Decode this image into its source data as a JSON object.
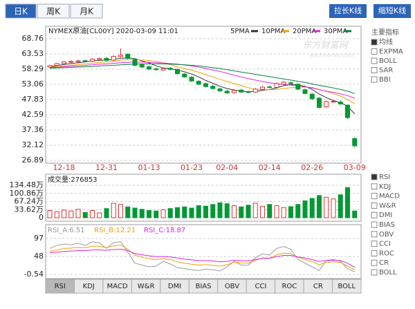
{
  "tabs": [
    "日K",
    "周K",
    "月K"
  ],
  "active_tab": 0,
  "buttons": [
    "拉长K线",
    "缩短K线"
  ],
  "watermark": [
    "东方财富网",
    "eastmoney.com"
  ],
  "side_menu": {
    "title": "主要指标",
    "items": [
      "均线",
      "EXPMA",
      "BOLL",
      "SAR",
      "BBI"
    ],
    "selected_index": 0
  },
  "indicator_menu": {
    "items": [
      "RSI",
      "KDJ",
      "MACD",
      "W&R",
      "DMI",
      "BIAS",
      "OBV",
      "CCI",
      "ROC",
      "CR",
      "BOLL"
    ],
    "selected_index": 0
  },
  "bottom_tabs": {
    "items": [
      "RSI",
      "KDJ",
      "MACD",
      "W&R",
      "DMI",
      "BIAS",
      "OBV",
      "CCI",
      "ROC",
      "CR",
      "BOLL"
    ],
    "active_index": 0
  },
  "chart_data": [
    {
      "type": "candlestick",
      "title": "NYMEX原油[CL00Y] 2020-03-09 11:01",
      "categories": [
        null,
        null,
        "12-18",
        null,
        null,
        null,
        null,
        null,
        "12-31",
        null,
        null,
        null,
        null,
        null,
        "01-13",
        null,
        null,
        null,
        null,
        null,
        "01-23",
        null,
        null,
        null,
        null,
        "02-04",
        null,
        null,
        null,
        null,
        null,
        "02-14",
        null,
        null,
        null,
        null,
        null,
        "02-26",
        null,
        null,
        null,
        null,
        null,
        "03-09"
      ],
      "open": [
        59.0,
        59.6,
        60.2,
        60.7,
        60.9,
        61.2,
        61.0,
        61.6,
        62.0,
        61.4,
        62.6,
        63.4,
        61.6,
        59.8,
        59.1,
        58.4,
        58.0,
        58.6,
        58.2,
        56.6,
        55.5,
        54.1,
        53.3,
        52.4,
        51.5,
        50.7,
        50.2,
        51.1,
        50.5,
        50.4,
        51.3,
        52.2,
        52.0,
        53.1,
        53.6,
        53.1,
        51.2,
        49.7,
        48.3,
        45.3,
        47.0,
        47.0,
        45.9,
        34.4
      ],
      "high": [
        59.8,
        60.5,
        61.1,
        61.3,
        61.5,
        61.6,
        62.1,
        62.3,
        62.4,
        63.0,
        65.4,
        63.8,
        62.0,
        60.2,
        59.5,
        58.8,
        58.9,
        59.0,
        58.5,
        57.0,
        55.9,
        54.5,
        53.7,
        52.8,
        51.9,
        51.2,
        51.4,
        51.5,
        50.9,
        51.8,
        52.5,
        52.6,
        53.7,
        54.2,
        54.0,
        53.4,
        51.6,
        50.1,
        48.7,
        47.5,
        47.6,
        47.5,
        46.1,
        34.9
      ],
      "low": [
        58.7,
        59.3,
        59.9,
        60.4,
        60.6,
        60.7,
        60.7,
        61.3,
        61.0,
        61.1,
        62.3,
        61.6,
        59.2,
        58.7,
        58.0,
        57.8,
        57.7,
        57.9,
        56.4,
        55.3,
        53.9,
        52.8,
        52.0,
        51.3,
        50.5,
        49.8,
        49.9,
        50.1,
        50.0,
        50.1,
        51.0,
        51.8,
        51.7,
        52.8,
        53.0,
        51.1,
        49.6,
        47.8,
        44.8,
        44.9,
        46.7,
        46.0,
        41.2,
        31.5
      ],
      "close": [
        59.5,
        60.2,
        60.8,
        60.9,
        61.1,
        61.0,
        61.7,
        61.9,
        61.3,
        62.7,
        63.1,
        62.0,
        59.6,
        59.0,
        58.3,
        58.1,
        58.5,
        58.2,
        56.7,
        55.6,
        54.2,
        53.1,
        52.3,
        51.6,
        50.8,
        50.1,
        51.0,
        50.4,
        50.3,
        51.4,
        52.1,
        52.1,
        53.3,
        53.8,
        53.3,
        51.4,
        49.9,
        48.1,
        45.1,
        47.1,
        47.2,
        46.3,
        41.6,
        31.9
      ],
      "up_color": "#e03030",
      "down_color": "#009933",
      "ylim": [
        26.89,
        68.76
      ],
      "yticks": [
        68.76,
        63.53,
        58.29,
        53.06,
        47.83,
        42.59,
        37.36,
        32.12,
        26.89
      ],
      "grid": true,
      "series": [
        {
          "name": "5PMA",
          "color": "#333333",
          "values": [
            59.2,
            59.5,
            59.9,
            60.2,
            60.5,
            60.8,
            61.1,
            61.3,
            61.4,
            61.7,
            62.0,
            62.2,
            61.9,
            61.1,
            60.4,
            59.4,
            58.7,
            58.4,
            57.9,
            57.4,
            56.6,
            55.6,
            54.4,
            53.4,
            52.4,
            51.6,
            51.1,
            50.8,
            50.5,
            50.6,
            51.0,
            51.3,
            51.8,
            52.6,
            53.0,
            52.8,
            52.4,
            51.3,
            49.7,
            48.5,
            47.5,
            46.8,
            45.5,
            42.9
          ]
        },
        {
          "name": "10PMA",
          "color": "#f0a000",
          "values": [
            59.0,
            59.2,
            59.4,
            59.6,
            59.9,
            60.1,
            60.3,
            60.6,
            60.8,
            61.0,
            61.4,
            61.6,
            61.6,
            61.4,
            61.2,
            61.0,
            60.4,
            59.8,
            59.1,
            58.5,
            57.9,
            57.2,
            56.4,
            55.6,
            54.8,
            54.0,
            53.3,
            52.6,
            51.9,
            51.3,
            51.2,
            51.2,
            51.3,
            51.6,
            51.9,
            52.1,
            52.1,
            52.0,
            51.3,
            50.6,
            49.9,
            49.0,
            47.8,
            46.3
          ]
        },
        {
          "name": "20PMA",
          "color": "#e020e0",
          "values": [
            58.8,
            58.9,
            59.1,
            59.3,
            59.4,
            59.6,
            59.8,
            60.0,
            60.1,
            60.3,
            60.5,
            60.6,
            60.7,
            60.7,
            60.6,
            60.5,
            60.4,
            60.2,
            60.0,
            59.7,
            59.4,
            59.0,
            58.5,
            58.0,
            57.5,
            56.9,
            56.2,
            55.6,
            55.0,
            54.5,
            54.0,
            53.6,
            53.3,
            53.0,
            52.8,
            52.6,
            52.2,
            51.8,
            51.2,
            50.7,
            50.3,
            49.8,
            49.2,
            48.3
          ]
        },
        {
          "name": "30PMA",
          "color": "#008040",
          "values": [
            58.6,
            58.7,
            58.8,
            58.9,
            59.0,
            59.1,
            59.2,
            59.4,
            59.5,
            59.6,
            59.8,
            59.9,
            60.0,
            60.1,
            60.1,
            60.1,
            60.1,
            60.0,
            59.9,
            59.8,
            59.6,
            59.4,
            59.1,
            58.8,
            58.5,
            58.1,
            57.7,
            57.3,
            56.9,
            56.5,
            56.1,
            55.7,
            55.3,
            54.9,
            54.5,
            54.1,
            53.7,
            53.2,
            52.7,
            52.3,
            51.8,
            51.3,
            50.7,
            49.9
          ]
        }
      ]
    },
    {
      "type": "bar",
      "title": "成交量:276853",
      "values": [
        30,
        25,
        32,
        28,
        35,
        22,
        30,
        20,
        38,
        60,
        55,
        45,
        40,
        35,
        30,
        28,
        33,
        38,
        42,
        45,
        40,
        50,
        48,
        55,
        62,
        58,
        50,
        45,
        52,
        60,
        48,
        55,
        50,
        42,
        46,
        55,
        70,
        80,
        92,
        85,
        78,
        95,
        125,
        27.69
      ],
      "ylim": [
        0,
        134.48
      ],
      "yticks": [
        {
          "value": 134.48,
          "label": "134.48万"
        },
        {
          "value": 100.86,
          "label": "100.86万"
        },
        {
          "value": 67.24,
          "label": "67.24万"
        },
        {
          "value": 33.62,
          "label": "33.62万"
        },
        0
      ],
      "grid": true
    },
    {
      "type": "line",
      "ylim": [
        -0.54,
        97
      ],
      "yticks": [
        97,
        48,
        -0.54
      ],
      "grid": true,
      "series": [
        {
          "name": "RSI_A:6.51",
          "color": "#999999",
          "values": [
            70,
            78,
            82,
            80,
            84,
            78,
            88,
            85,
            70,
            86,
            88,
            60,
            30,
            25,
            20,
            22,
            35,
            28,
            18,
            15,
            12,
            10,
            14,
            12,
            9,
            20,
            35,
            25,
            24,
            45,
            55,
            52,
            70,
            75,
            68,
            40,
            30,
            20,
            10,
            38,
            40,
            35,
            15,
            6.51
          ]
        },
        {
          "name": "RSI_B:12.21",
          "color": "#f0a000",
          "values": [
            62,
            66,
            70,
            71,
            73,
            72,
            76,
            76,
            72,
            77,
            79,
            68,
            52,
            46,
            42,
            40,
            42,
            40,
            34,
            30,
            27,
            25,
            26,
            24,
            22,
            26,
            33,
            31,
            30,
            38,
            44,
            44,
            53,
            57,
            56,
            46,
            40,
            34,
            26,
            32,
            34,
            32,
            22,
            12.21
          ]
        },
        {
          "name": "RSI_C:18.87",
          "color": "#e020e0",
          "values": [
            58,
            60,
            62,
            63,
            64,
            64,
            66,
            66,
            65,
            67,
            68,
            64,
            56,
            53,
            50,
            48,
            48,
            47,
            44,
            41,
            39,
            37,
            37,
            36,
            34,
            35,
            38,
            37,
            36,
            40,
            43,
            43,
            48,
            51,
            51,
            47,
            44,
            40,
            35,
            37,
            38,
            37,
            30,
            18.87
          ]
        }
      ]
    }
  ]
}
